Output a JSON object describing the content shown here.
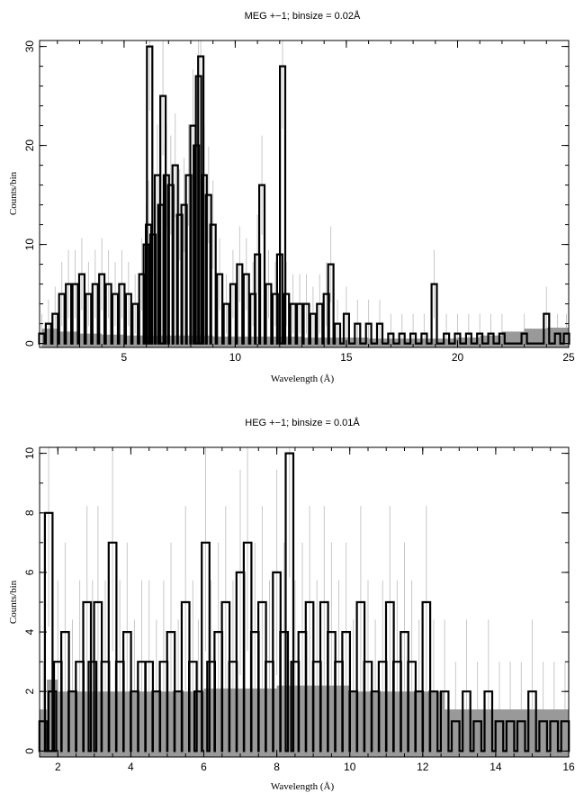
{
  "chart_data": [
    {
      "type": "histogram-step",
      "title": "MEG +−1; binsize = 0.02Å",
      "xlabel": "Wavelength (Å)",
      "ylabel": "Counts/bin",
      "xlim": [
        1.2,
        25
      ],
      "ylim": [
        -0.4,
        30.6
      ],
      "xticks_major": [
        5,
        10,
        15,
        20,
        25
      ],
      "xticks_minor_step": 1,
      "yticks_major": [
        0,
        10,
        20,
        30
      ],
      "yticks_minor_step": 2,
      "xtick_labels": [
        "5",
        "10",
        "15",
        "20",
        "25"
      ],
      "ytick_labels": [
        "0",
        "10",
        "20",
        "30"
      ],
      "grid": false,
      "legend": "none",
      "colors": {
        "data": "#000000",
        "model": "#999999",
        "errorbar": "#c8c8c8"
      },
      "series": [
        {
          "role": "counts",
          "x": [
            1.3,
            1.6,
            1.9,
            2.2,
            2.5,
            2.8,
            3.1,
            3.4,
            3.7,
            4.0,
            4.3,
            4.6,
            4.9,
            5.2,
            5.5,
            5.8,
            6.0,
            6.1,
            6.15,
            6.3,
            6.5,
            6.65,
            6.75,
            6.9,
            7.1,
            7.3,
            7.5,
            7.7,
            7.9,
            8.1,
            8.25,
            8.35,
            8.45,
            8.6,
            8.8,
            9.0,
            9.3,
            9.6,
            9.9,
            10.2,
            10.5,
            10.8,
            11.0,
            11.2,
            11.5,
            11.8,
            12.0,
            12.13,
            12.3,
            12.6,
            12.9,
            13.2,
            13.5,
            13.8,
            14.1,
            14.3,
            14.6,
            15.0,
            15.5,
            16.0,
            16.5,
            17.0,
            17.5,
            18.0,
            18.5,
            18.95,
            19.5,
            20.0,
            20.5,
            21.0,
            21.5,
            22.0,
            22.5,
            23.0,
            23.5,
            24.0,
            24.5,
            24.9
          ],
          "y": [
            1,
            2,
            3,
            5,
            6,
            6,
            7,
            5,
            6,
            7,
            6,
            5,
            6,
            5,
            4,
            7,
            10,
            12,
            30,
            11,
            17,
            14,
            25,
            17,
            16,
            18,
            13,
            14,
            17,
            22,
            20,
            27,
            29,
            17,
            15,
            12,
            7,
            4,
            6,
            8,
            7,
            5,
            9,
            16,
            6,
            5,
            9,
            28,
            5,
            4,
            4,
            4,
            3,
            4,
            5,
            8,
            2,
            3,
            2,
            2,
            2,
            1,
            1,
            1,
            1,
            6,
            1,
            1,
            1,
            1,
            1,
            1,
            0,
            1,
            0,
            3,
            1,
            1
          ]
        },
        {
          "role": "model",
          "x": [
            1.3,
            2,
            3,
            4,
            5,
            6,
            7,
            8,
            9,
            10,
            11,
            12,
            13,
            14,
            15,
            16,
            17,
            18,
            19,
            20,
            21,
            22,
            23,
            24,
            25
          ],
          "y": [
            1.5,
            1.2,
            1.0,
            0.9,
            0.8,
            0.8,
            0.8,
            0.8,
            0.7,
            0.7,
            0.7,
            0.7,
            0.6,
            0.6,
            0.6,
            0.5,
            0.5,
            0.5,
            0.5,
            0.6,
            0.8,
            1.2,
            1.5,
            1.6,
            1.6
          ]
        }
      ]
    },
    {
      "type": "histogram-step",
      "title": "HEG +−1; binsize = 0.01Å",
      "xlabel": "Wavelength (Å)",
      "ylabel": "Counts/bin",
      "xlim": [
        1.5,
        16
      ],
      "ylim": [
        -0.2,
        10.2
      ],
      "xticks_major": [
        2,
        4,
        6,
        8,
        10,
        12,
        14,
        16
      ],
      "xticks_minor_step": 0.5,
      "yticks_major": [
        0,
        2,
        4,
        6,
        8,
        10
      ],
      "yticks_minor_step": 1,
      "xtick_labels": [
        "2",
        "4",
        "6",
        "8",
        "10",
        "12",
        "14",
        "16"
      ],
      "ytick_labels": [
        "0",
        "2",
        "4",
        "6",
        "8",
        "10"
      ],
      "grid": false,
      "legend": "none",
      "colors": {
        "data": "#000000",
        "model": "#999999",
        "errorbar": "#c8c8c8"
      },
      "series": [
        {
          "role": "counts",
          "x": [
            1.6,
            1.75,
            1.85,
            2.0,
            2.2,
            2.4,
            2.6,
            2.8,
            2.95,
            3.1,
            3.3,
            3.5,
            3.7,
            3.9,
            4.1,
            4.3,
            4.5,
            4.7,
            4.9,
            5.1,
            5.3,
            5.5,
            5.7,
            5.85,
            6.05,
            6.2,
            6.4,
            6.6,
            6.8,
            7.0,
            7.2,
            7.4,
            7.6,
            7.8,
            8.0,
            8.2,
            8.35,
            8.5,
            8.7,
            8.9,
            9.1,
            9.3,
            9.5,
            9.7,
            9.9,
            10.1,
            10.3,
            10.5,
            10.7,
            10.9,
            11.1,
            11.3,
            11.5,
            11.7,
            11.9,
            12.1,
            12.3,
            12.6,
            12.9,
            13.2,
            13.5,
            13.8,
            14.1,
            14.4,
            14.7,
            15.0,
            15.3,
            15.6,
            15.9
          ],
          "y": [
            1,
            8,
            2,
            3,
            4,
            2,
            3,
            5,
            3,
            5,
            3,
            7,
            3,
            4,
            2,
            3,
            3,
            2,
            3,
            4,
            2,
            5,
            3,
            2,
            7,
            3,
            4,
            5,
            3,
            6,
            7,
            4,
            5,
            3,
            6,
            4,
            10,
            3,
            4,
            5,
            3,
            5,
            4,
            3,
            4,
            2,
            5,
            3,
            2,
            3,
            5,
            3,
            4,
            3,
            2,
            5,
            2,
            2,
            1,
            2,
            1,
            2,
            1,
            1,
            1,
            2,
            1,
            1,
            1
          ]
        },
        {
          "role": "model",
          "x": [
            1.5,
            1.7,
            2.0,
            4.0,
            6.0,
            8.0,
            9.0,
            10.0,
            11.0,
            12.0,
            12.6,
            13.0,
            14.0,
            14.6,
            15.0,
            16.0
          ],
          "y": [
            1.4,
            2.4,
            2.0,
            2.0,
            2.1,
            2.2,
            2.2,
            2.0,
            2.0,
            2.0,
            1.4,
            1.4,
            1.4,
            1.4,
            1.4,
            1.4
          ]
        }
      ]
    }
  ]
}
